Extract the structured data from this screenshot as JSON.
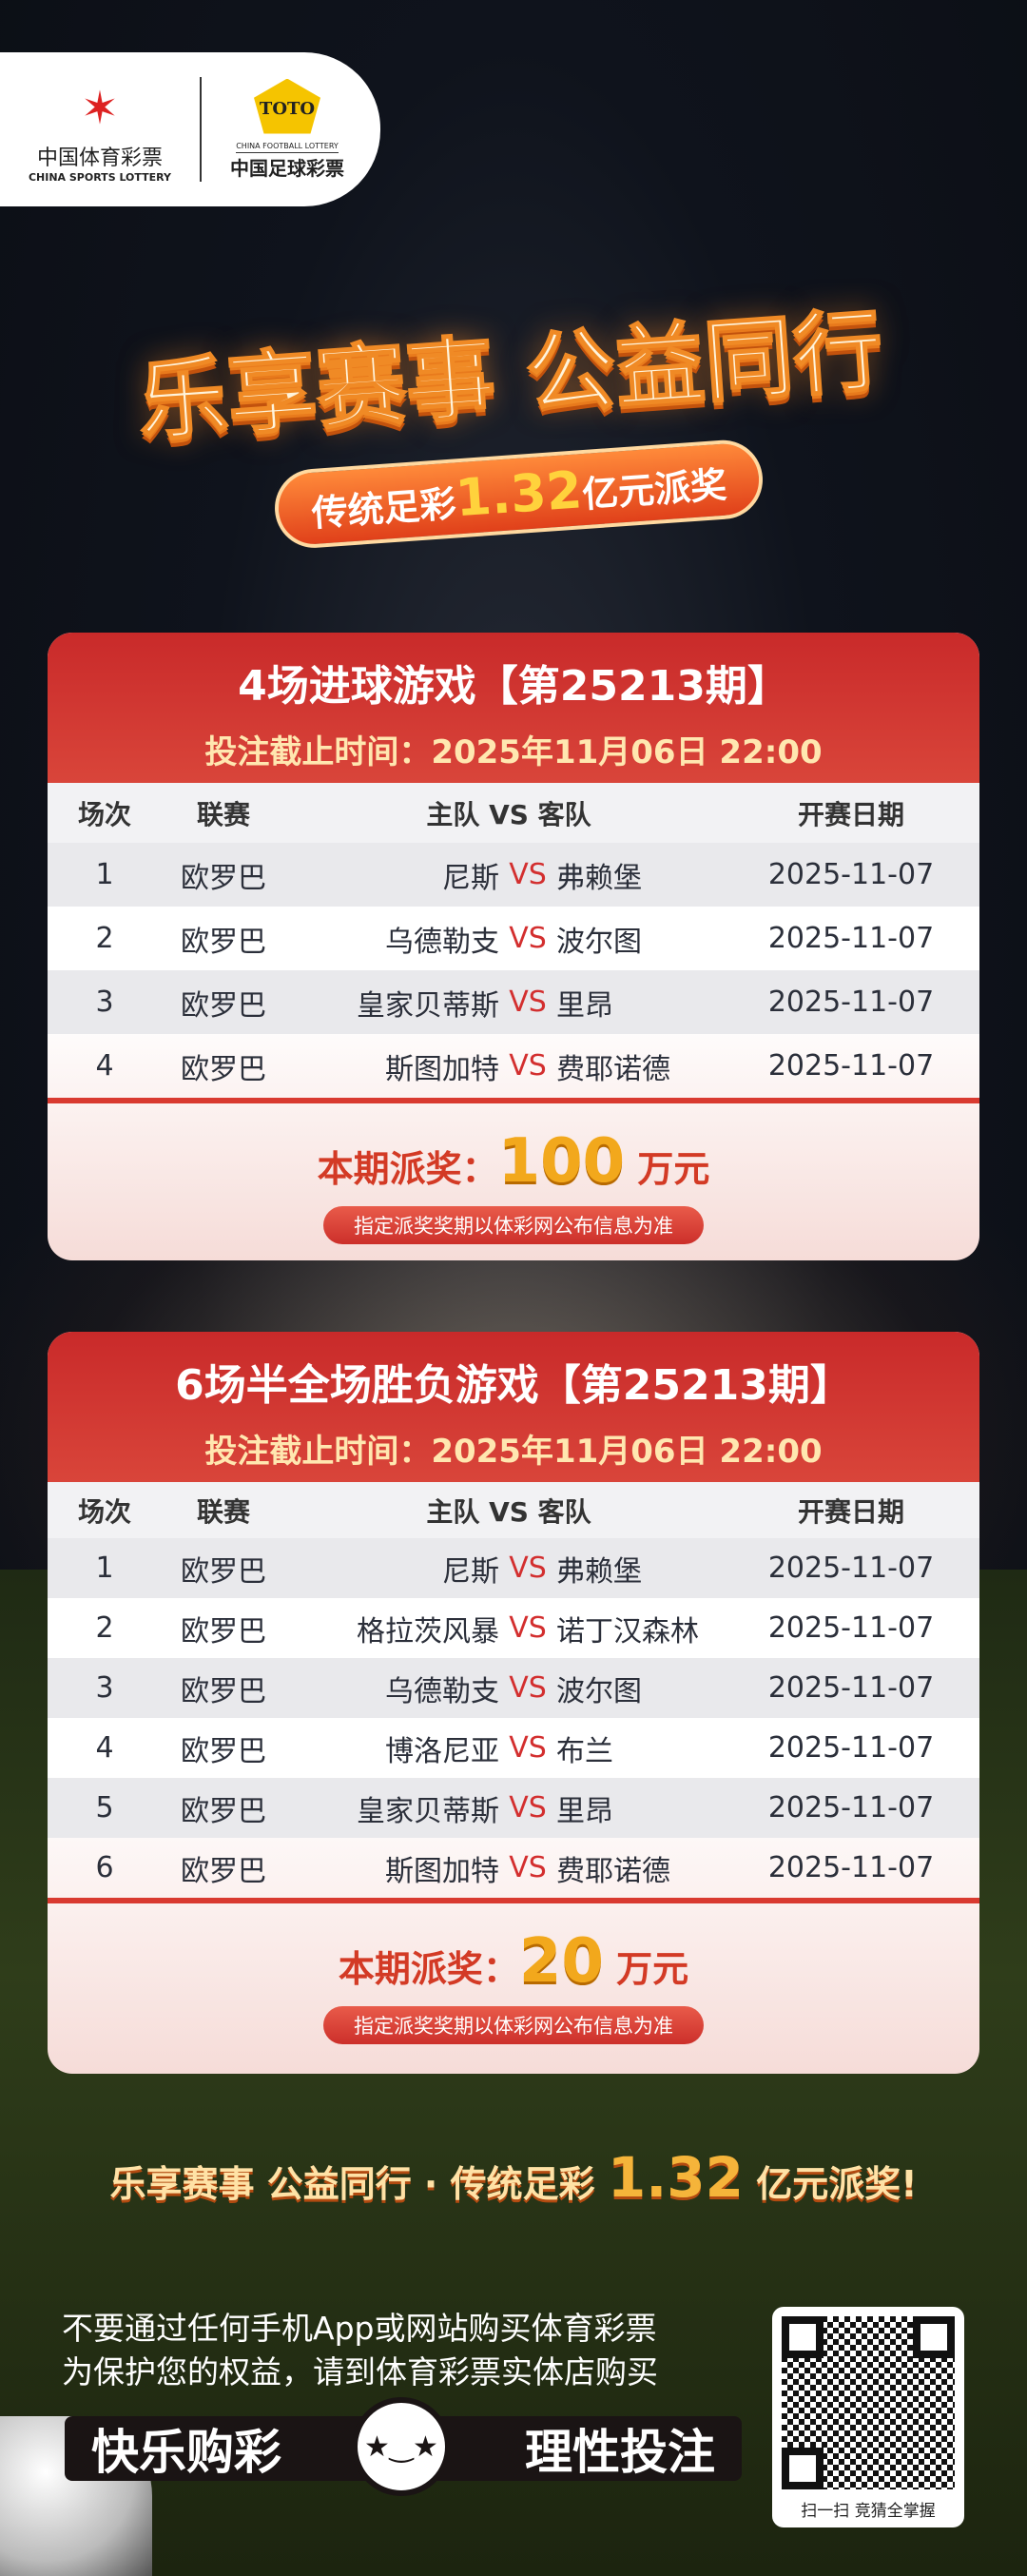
{
  "logos": {
    "sports_lottery_cn": "中国体育彩票",
    "sports_lottery_en": "CHINA SPORTS LOTTERY",
    "football_lottery_mark": "TOTO",
    "football_lottery_en": "CHINA FOOTBALL LOTTERY",
    "football_lottery_cn": "中国足球彩票"
  },
  "hero": {
    "title": "乐享赛事 公益同行",
    "pill_prefix": "传统足彩",
    "pill_amount": "1.32",
    "pill_suffix": "亿元派奖"
  },
  "table_headers": {
    "no": "场次",
    "league": "联赛",
    "teams": "主队 VS 客队",
    "date": "开赛日期"
  },
  "vs": "VS",
  "card1": {
    "title": "4场进球游戏【第25213期】",
    "deadline": "投注截止时间：2025年11月06日 22:00",
    "rows": [
      {
        "no": "1",
        "league": "欧罗巴",
        "home": "尼斯",
        "away": "弗赖堡",
        "date": "2025-11-07"
      },
      {
        "no": "2",
        "league": "欧罗巴",
        "home": "乌德勒支",
        "away": "波尔图",
        "date": "2025-11-07"
      },
      {
        "no": "3",
        "league": "欧罗巴",
        "home": "皇家贝蒂斯",
        "away": "里昂",
        "date": "2025-11-07"
      },
      {
        "no": "4",
        "league": "欧罗巴",
        "home": "斯图加特",
        "away": "费耶诺德",
        "date": "2025-11-07"
      }
    ],
    "prize_label": "本期派奖：",
    "prize_amount": "100",
    "prize_unit": "万元",
    "note": "指定派奖奖期以体彩网公布信息为准"
  },
  "card2": {
    "title": "6场半全场胜负游戏【第25213期】",
    "deadline": "投注截止时间：2025年11月06日 22:00",
    "rows": [
      {
        "no": "1",
        "league": "欧罗巴",
        "home": "尼斯",
        "away": "弗赖堡",
        "date": "2025-11-07"
      },
      {
        "no": "2",
        "league": "欧罗巴",
        "home": "格拉茨风暴",
        "away": "诺丁汉森林",
        "date": "2025-11-07"
      },
      {
        "no": "3",
        "league": "欧罗巴",
        "home": "乌德勒支",
        "away": "波尔图",
        "date": "2025-11-07"
      },
      {
        "no": "4",
        "league": "欧罗巴",
        "home": "博洛尼亚",
        "away": "布兰",
        "date": "2025-11-07"
      },
      {
        "no": "5",
        "league": "欧罗巴",
        "home": "皇家贝蒂斯",
        "away": "里昂",
        "date": "2025-11-07"
      },
      {
        "no": "6",
        "league": "欧罗巴",
        "home": "斯图加特",
        "away": "费耶诺德",
        "date": "2025-11-07"
      }
    ],
    "prize_label": "本期派奖：",
    "prize_amount": "20",
    "prize_unit": "万元",
    "note": "指定派奖奖期以体彩网公布信息为准"
  },
  "footer": {
    "slogan_prefix": "乐享赛事 公益同行 · 传统足彩",
    "slogan_amount": "1.32",
    "slogan_suffix": "亿元派奖!",
    "warning_line1": "不要通过任何手机App或网站购买体育彩票",
    "warning_line2": "为保护您的权益，请到体育彩票实体店购买",
    "bar_left": "快乐购彩",
    "bar_right": "理性投注",
    "qr_caption": "扫一扫  竞猜全掌握"
  },
  "colors": {
    "header_red": "#c92a2a",
    "vs_red": "#d32f2f",
    "gold": "#f2a81c"
  }
}
